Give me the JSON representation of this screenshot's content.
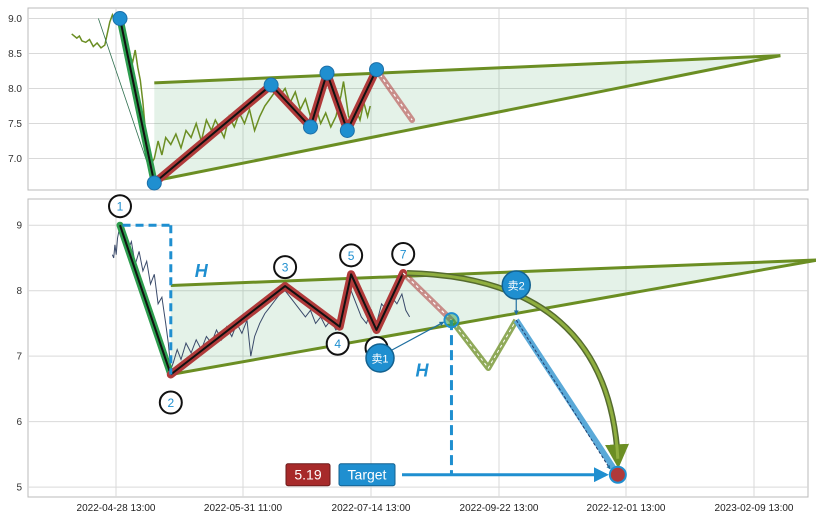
{
  "chart_data": [
    {
      "type": "line",
      "panel": "overview",
      "ylim": [
        6.55,
        9.15
      ],
      "yticks": [
        "7.0",
        "7.5",
        "8.0",
        "8.5",
        "9.0"
      ],
      "price_series": [
        [
          -0.38,
          8.78
        ],
        [
          -0.34,
          8.72
        ],
        [
          -0.32,
          8.75
        ],
        [
          -0.3,
          8.68
        ],
        [
          -0.27,
          8.66
        ],
        [
          -0.24,
          8.7
        ],
        [
          -0.21,
          8.6
        ],
        [
          -0.18,
          8.65
        ],
        [
          -0.15,
          8.58
        ],
        [
          -0.12,
          8.62
        ],
        [
          -0.08,
          8.95
        ],
        [
          -0.06,
          9.05
        ],
        [
          -0.04,
          8.95
        ],
        [
          -0.02,
          9.0
        ],
        [
          0.02,
          8.85
        ],
        [
          0.05,
          8.7
        ],
        [
          0.08,
          8.45
        ],
        [
          0.1,
          8.38
        ],
        [
          0.12,
          8.55
        ],
        [
          0.14,
          8.3
        ],
        [
          0.16,
          8.12
        ],
        [
          0.18,
          7.8
        ],
        [
          0.2,
          7.4
        ],
        [
          0.22,
          7.1
        ],
        [
          0.24,
          6.9
        ],
        [
          0.27,
          7.0
        ],
        [
          0.3,
          7.25
        ],
        [
          0.33,
          7.05
        ],
        [
          0.36,
          7.3
        ],
        [
          0.4,
          7.2
        ],
        [
          0.44,
          7.35
        ],
        [
          0.48,
          7.15
        ],
        [
          0.52,
          7.4
        ],
        [
          0.56,
          7.3
        ],
        [
          0.6,
          7.5
        ],
        [
          0.64,
          7.25
        ],
        [
          0.68,
          7.55
        ],
        [
          0.72,
          7.4
        ],
        [
          0.75,
          7.55
        ],
        [
          0.78,
          7.45
        ],
        [
          0.82,
          7.3
        ],
        [
          0.86,
          7.6
        ],
        [
          0.9,
          7.45
        ],
        [
          0.94,
          7.65
        ],
        [
          0.98,
          7.5
        ],
        [
          1.02,
          7.7
        ],
        [
          1.06,
          7.4
        ],
        [
          1.1,
          7.6
        ],
        [
          1.14,
          7.75
        ],
        [
          1.18,
          7.85
        ],
        [
          1.22,
          7.95
        ],
        [
          1.26,
          7.9
        ],
        [
          1.3,
          8.0
        ],
        [
          1.34,
          7.8
        ],
        [
          1.38,
          7.95
        ],
        [
          1.42,
          7.7
        ],
        [
          1.46,
          7.85
        ],
        [
          1.5,
          7.6
        ],
        [
          1.54,
          7.75
        ],
        [
          1.58,
          7.5
        ],
        [
          1.62,
          7.65
        ],
        [
          1.66,
          7.45
        ],
        [
          1.7,
          7.6
        ],
        [
          1.74,
          7.9
        ],
        [
          1.76,
          8.1
        ],
        [
          1.78,
          7.85
        ],
        [
          1.8,
          7.6
        ],
        [
          1.83,
          7.5
        ],
        [
          1.86,
          7.7
        ],
        [
          1.89,
          7.55
        ],
        [
          1.92,
          7.8
        ],
        [
          1.95,
          7.6
        ],
        [
          1.97,
          7.75
        ]
      ],
      "pattern_points": [
        {
          "x": 0.0,
          "y": 9.0
        },
        {
          "x": 0.27,
          "y": 6.65
        },
        {
          "x": 1.19,
          "y": 8.05
        },
        {
          "x": 1.5,
          "y": 7.45
        },
        {
          "x": 1.63,
          "y": 8.22
        },
        {
          "x": 1.79,
          "y": 7.4
        },
        {
          "x": 2.02,
          "y": 8.27
        }
      ],
      "projection": [
        [
          2.02,
          8.27
        ],
        [
          2.3,
          7.55
        ]
      ],
      "triangle_upper": [
        [
          0.27,
          8.08
        ],
        [
          5.2,
          8.47
        ]
      ],
      "triangle_lower": [
        [
          0.27,
          6.68
        ],
        [
          5.2,
          8.47
        ]
      ]
    },
    {
      "type": "line",
      "panel": "detail",
      "ylim": [
        4.85,
        9.4
      ],
      "yticks": [
        "5",
        "6",
        "7",
        "8",
        "9"
      ],
      "x_tick_labels": [
        "2022-04-28 13:00",
        "2022-05-31 11:00",
        "2022-07-14 13:00",
        "2022-09-22 13:00",
        "2022-12-01 13:00",
        "2023-02-09 13:00"
      ],
      "price_series": [
        [
          -0.06,
          8.55
        ],
        [
          -0.05,
          8.5
        ],
        [
          -0.04,
          8.7
        ],
        [
          -0.03,
          8.55
        ],
        [
          -0.02,
          8.8
        ],
        [
          0.0,
          9.0
        ],
        [
          0.03,
          8.9
        ],
        [
          0.06,
          8.6
        ],
        [
          0.09,
          8.75
        ],
        [
          0.12,
          8.4
        ],
        [
          0.15,
          8.6
        ],
        [
          0.18,
          8.3
        ],
        [
          0.21,
          8.45
        ],
        [
          0.24,
          8.1
        ],
        [
          0.27,
          8.25
        ],
        [
          0.3,
          7.8
        ],
        [
          0.33,
          7.9
        ],
        [
          0.36,
          7.5
        ],
        [
          0.38,
          7.2
        ],
        [
          0.4,
          6.8
        ],
        [
          0.42,
          6.9
        ],
        [
          0.45,
          7.1
        ],
        [
          0.48,
          6.95
        ],
        [
          0.52,
          7.2
        ],
        [
          0.56,
          7.05
        ],
        [
          0.6,
          7.25
        ],
        [
          0.64,
          7.1
        ],
        [
          0.68,
          7.3
        ],
        [
          0.72,
          7.2
        ],
        [
          0.76,
          7.4
        ],
        [
          0.8,
          7.25
        ],
        [
          0.84,
          7.45
        ],
        [
          0.88,
          7.3
        ],
        [
          0.92,
          7.5
        ],
        [
          0.96,
          7.35
        ],
        [
          1.0,
          7.55
        ],
        [
          1.03,
          7.0
        ],
        [
          1.06,
          7.3
        ],
        [
          1.1,
          7.5
        ],
        [
          1.14,
          7.65
        ],
        [
          1.18,
          7.75
        ],
        [
          1.22,
          7.85
        ],
        [
          1.26,
          7.95
        ],
        [
          1.3,
          8.0
        ],
        [
          1.34,
          7.9
        ],
        [
          1.38,
          7.8
        ],
        [
          1.42,
          7.7
        ],
        [
          1.46,
          7.6
        ],
        [
          1.5,
          7.7
        ],
        [
          1.54,
          7.5
        ],
        [
          1.58,
          7.6
        ],
        [
          1.62,
          7.45
        ],
        [
          1.66,
          7.55
        ],
        [
          1.7,
          7.4
        ],
        [
          1.74,
          7.5
        ],
        [
          1.78,
          7.8
        ],
        [
          1.82,
          8.0
        ],
        [
          1.86,
          7.8
        ],
        [
          1.9,
          7.6
        ],
        [
          1.94,
          7.5
        ],
        [
          1.98,
          7.7
        ],
        [
          2.02,
          7.5
        ],
        [
          2.06,
          7.8
        ],
        [
          2.1,
          7.7
        ],
        [
          2.14,
          7.9
        ],
        [
          2.18,
          7.8
        ],
        [
          2.22,
          7.95
        ],
        [
          2.25,
          7.7
        ],
        [
          2.28,
          7.6
        ]
      ],
      "pattern_points": [
        {
          "label": "1",
          "x": 0.0,
          "y": 9.0
        },
        {
          "label": "2",
          "x": 0.4,
          "y": 6.72
        },
        {
          "label": "3",
          "x": 1.3,
          "y": 8.07
        },
        {
          "label": "4",
          "x": 1.73,
          "y": 7.45
        },
        {
          "label": "5",
          "x": 1.82,
          "y": 8.25
        },
        {
          "label": "6",
          "x": 2.02,
          "y": 7.4
        },
        {
          "label": "7",
          "x": 2.23,
          "y": 8.27
        }
      ],
      "projection": [
        [
          2.23,
          8.27
        ],
        [
          2.61,
          7.55
        ]
      ],
      "zigzag": [
        [
          2.61,
          7.55
        ],
        [
          2.9,
          6.82
        ],
        [
          3.12,
          7.55
        ]
      ],
      "drop_line": [
        [
          3.12,
          7.55
        ],
        [
          3.92,
          5.19
        ]
      ],
      "curve_arrow": [
        [
          2.26,
          8.27
        ],
        [
          3.92,
          5.19
        ]
      ],
      "triangle_upper": [
        [
          0.4,
          8.08
        ],
        [
          5.5,
          8.47
        ]
      ],
      "triangle_lower": [
        [
          0.4,
          6.72
        ],
        [
          5.5,
          8.47
        ]
      ],
      "height_label": "H",
      "buy_labels": [
        "卖1",
        "卖2"
      ],
      "target_value": "5.19",
      "target_label": "Target"
    }
  ],
  "colors": {
    "pattern_fill": "#2e9d4f",
    "triangle_line": "#6b8e23",
    "zigzag_red": "#b03a3a",
    "marker_blue": "#1f8fd0",
    "price_green": "#6b8e23",
    "price_dark": "#3a4a6a",
    "target_red": "#a72a2a"
  }
}
